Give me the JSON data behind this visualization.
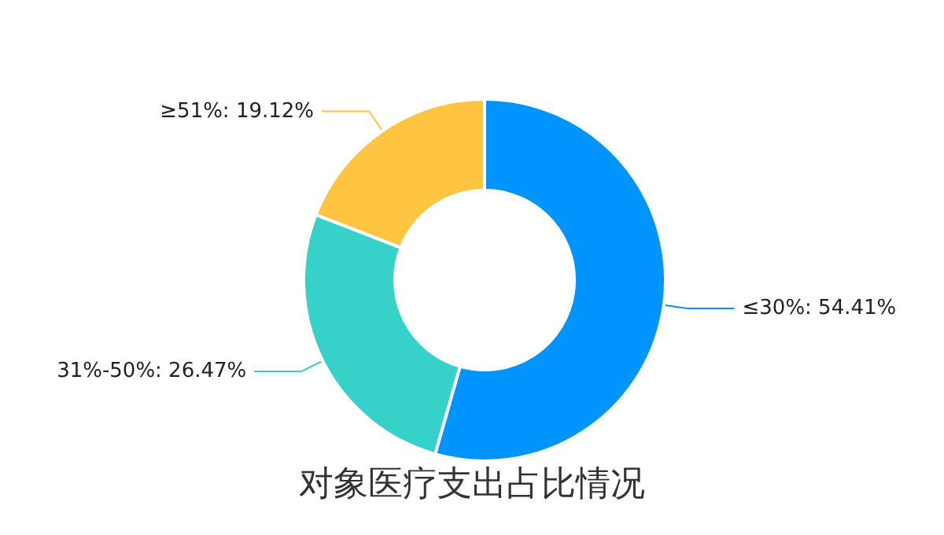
{
  "chart_data": {
    "type": "donut",
    "title": "对象医疗支出占比情况",
    "categories": [
      "≤30%",
      "31%-50%",
      "≥51%"
    ],
    "values": [
      54.41,
      26.47,
      19.12
    ],
    "colors": [
      "#0094ff",
      "#36d1c9",
      "#ffc440"
    ],
    "value_labels": [
      ": 54.41%",
      ": 26.47%",
      ": 19.12%"
    ],
    "legend": false
  }
}
